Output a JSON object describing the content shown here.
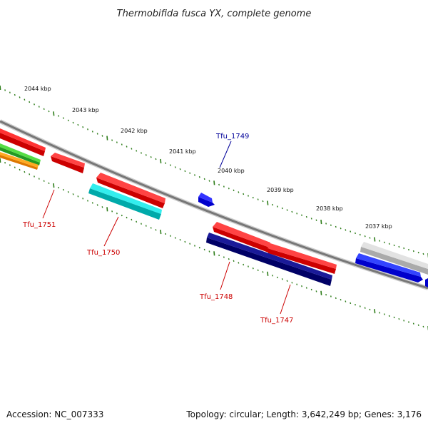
{
  "title": "Thermobifida fusca YX, complete genome",
  "ruler": {
    "ticks": [
      "2044 kbp",
      "2043 kbp",
      "2042 kbp",
      "2041 kbp",
      "2040 kbp",
      "2039 kbp",
      "2038 kbp",
      "2037 kbp"
    ]
  },
  "genes": [
    {
      "label": "Tfu_1751",
      "label_color": "#cc0000"
    },
    {
      "label": "Tfu_1750",
      "label_color": "#cc0000"
    },
    {
      "label": "Tfu_1749",
      "label_color": "#000099"
    },
    {
      "label": "Tfu_1748",
      "label_color": "#cc0000"
    },
    {
      "label": "Tfu_1747",
      "label_color": "#cc0000"
    }
  ],
  "colors": {
    "backbone": "#777777",
    "tick_marks": "#2e7d1a",
    "cds_forward": "#ff0000",
    "cds_teal": "#00cccc",
    "cds_blue": "#0000ee",
    "cds_navy": "#000080",
    "cds_green": "#33cc33",
    "cds_orange": "#ff9900",
    "cds_gray": "#bbbbbb"
  },
  "footer": {
    "accession": "Accession: NC_007333",
    "summary": "Topology: circular; Length: 3,642,249 bp; Genes: 3,176"
  }
}
